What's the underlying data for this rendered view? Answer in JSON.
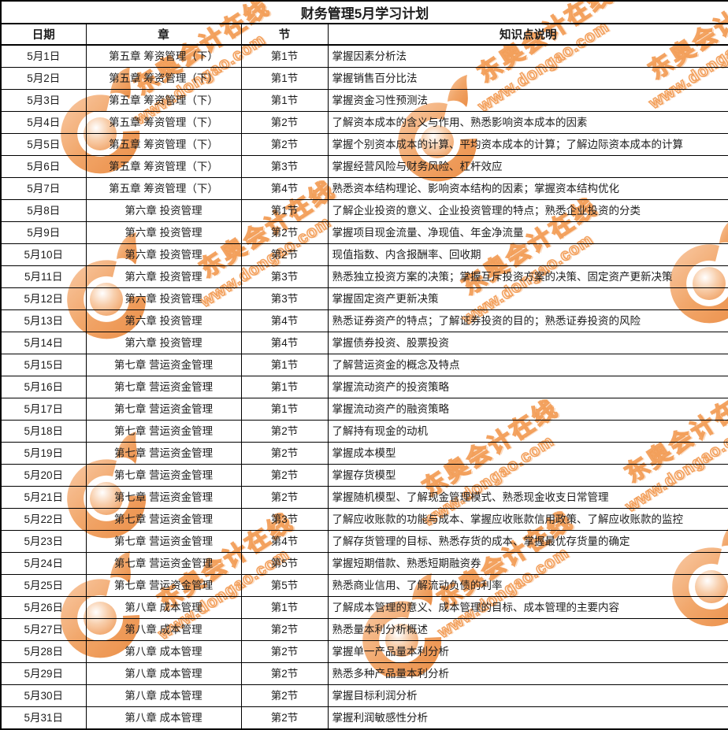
{
  "title": "财务管理5月学习计划",
  "columns": [
    "日期",
    "章",
    "节",
    "知识点说明"
  ],
  "rows": [
    {
      "date": "5月1日",
      "chapter": "第五章 筹资管理（下）",
      "section": "第1节",
      "knowledge": "掌握因素分析法"
    },
    {
      "date": "5月2日",
      "chapter": "第五章 筹资管理（下）",
      "section": "第1节",
      "knowledge": "掌握销售百分比法"
    },
    {
      "date": "5月3日",
      "chapter": "第五章 筹资管理（下）",
      "section": "第1节",
      "knowledge": "掌握资金习性预测法"
    },
    {
      "date": "5月4日",
      "chapter": "第五章 筹资管理（下）",
      "section": "第2节",
      "knowledge": "了解资本成本的含义与作用、熟悉影响资本成本的因素"
    },
    {
      "date": "5月5日",
      "chapter": "第五章 筹资管理（下）",
      "section": "第2节",
      "knowledge": "掌握个别资本成本的计算、平均资本成本的计算；了解边际资本成本的计算"
    },
    {
      "date": "5月6日",
      "chapter": "第五章 筹资管理（下）",
      "section": "第3节",
      "knowledge": "掌握经营风险与财务风险、杠杆效应"
    },
    {
      "date": "5月7日",
      "chapter": "第五章 筹资管理（下）",
      "section": "第4节",
      "knowledge": "熟悉资本结构理论、影响资本结构的因素；掌握资本结构优化"
    },
    {
      "date": "5月8日",
      "chapter": "第六章 投资管理",
      "section": "第1节",
      "knowledge": "了解企业投资的意义、企业投资管理的特点；熟悉企业投资的分类"
    },
    {
      "date": "5月9日",
      "chapter": "第六章 投资管理",
      "section": "第2节",
      "knowledge": "掌握项目现金流量、净现值、年金净流量"
    },
    {
      "date": "5月10日",
      "chapter": "第六章 投资管理",
      "section": "第2节",
      "knowledge": "现值指数、内含报酬率、回收期"
    },
    {
      "date": "5月11日",
      "chapter": "第六章 投资管理",
      "section": "第3节",
      "knowledge": "熟悉独立投资方案的决策；掌握互斥投资方案的决策、固定资产更新决策"
    },
    {
      "date": "5月12日",
      "chapter": "第六章 投资管理",
      "section": "第3节",
      "knowledge": "掌握固定资产更新决策"
    },
    {
      "date": "5月13日",
      "chapter": "第六章 投资管理",
      "section": "第4节",
      "knowledge": "熟悉证券资产的特点；了解证券投资的目的；熟悉证券投资的风险"
    },
    {
      "date": "5月14日",
      "chapter": "第六章 投资管理",
      "section": "第4节",
      "knowledge": "掌握债券投资、股票投资"
    },
    {
      "date": "5月15日",
      "chapter": "第七章 营运资金管理",
      "section": "第1节",
      "knowledge": "了解营运资金的概念及特点"
    },
    {
      "date": "5月16日",
      "chapter": "第七章 营运资金管理",
      "section": "第1节",
      "knowledge": "掌握流动资产的投资策略"
    },
    {
      "date": "5月17日",
      "chapter": "第七章 营运资金管理",
      "section": "第1节",
      "knowledge": "掌握流动资产的融资策略"
    },
    {
      "date": "5月18日",
      "chapter": "第七章 营运资金管理",
      "section": "第2节",
      "knowledge": "了解持有现金的动机"
    },
    {
      "date": "5月19日",
      "chapter": "第七章 营运资金管理",
      "section": "第2节",
      "knowledge": "掌握成本模型"
    },
    {
      "date": "5月20日",
      "chapter": "第七章 营运资金管理",
      "section": "第2节",
      "knowledge": "掌握存货模型"
    },
    {
      "date": "5月21日",
      "chapter": "第七章 营运资金管理",
      "section": "第2节",
      "knowledge": "掌握随机模型、了解现金管理模式、熟悉现金收支日常管理"
    },
    {
      "date": "5月22日",
      "chapter": "第七章 营运资金管理",
      "section": "第3节",
      "knowledge": "了解应收账款的功能与成本、掌握应收账款信用政策、了解应收账款的监控"
    },
    {
      "date": "5月23日",
      "chapter": "第七章 营运资金管理",
      "section": "第4节",
      "knowledge": "了解存货管理的目标、熟悉存货的成本、掌握最优存货量的确定"
    },
    {
      "date": "5月24日",
      "chapter": "第七章 营运资金管理",
      "section": "第5节",
      "knowledge": "掌握短期借款、熟悉短期融资券"
    },
    {
      "date": "5月25日",
      "chapter": "第七章 营运资金管理",
      "section": "第5节",
      "knowledge": "熟悉商业信用、了解流动负债的利率"
    },
    {
      "date": "5月26日",
      "chapter": "第八章 成本管理",
      "section": "第1节",
      "knowledge": "了解成本管理的意义、成本管理的目标、成本管理的主要内容"
    },
    {
      "date": "5月27日",
      "chapter": "第八章 成本管理",
      "section": "第2节",
      "knowledge": "熟悉量本利分析概述"
    },
    {
      "date": "5月28日",
      "chapter": "第八章 成本管理",
      "section": "第2节",
      "knowledge": "掌握单一产品量本利分析"
    },
    {
      "date": "5月29日",
      "chapter": "第八章 成本管理",
      "section": "第2节",
      "knowledge": "熟悉多种产品量本利分析"
    },
    {
      "date": "5月30日",
      "chapter": "第八章 成本管理",
      "section": "第2节",
      "knowledge": "掌握目标利润分析"
    },
    {
      "date": "5月31日",
      "chapter": "第八章 成本管理",
      "section": "第2节",
      "knowledge": "掌握利润敏感性分析"
    }
  ],
  "watermark": {
    "brand_text": "东奥会计在线",
    "url_text": "www.dongao.com",
    "color": "#ef8e3e"
  },
  "colors": {
    "border": "#000000",
    "text": "#1c1c1c",
    "background": "#ffffff"
  }
}
